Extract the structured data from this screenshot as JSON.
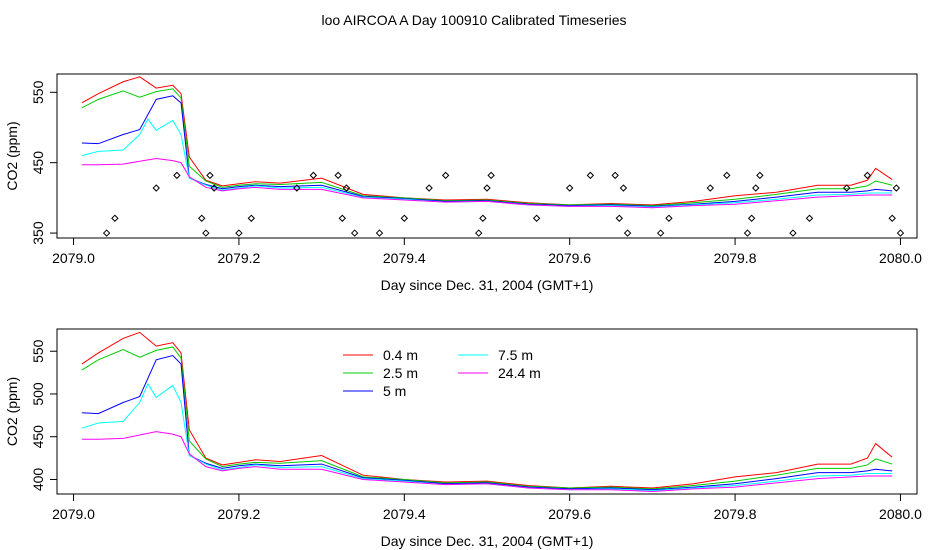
{
  "title": "loo AIRCOA A  Day 100910  Calibrated Timeseries",
  "colors": {
    "0.4 m": "#ff0000",
    "2.5 m": "#00cd00",
    "5 m": "#0000ff",
    "7.5 m": "#00ffff",
    "24.4 m": "#ff00ff",
    "points": "#000000"
  },
  "chart_data": [
    {
      "type": "line",
      "xlabel": "Day since Dec. 31, 2004 (GMT+1)",
      "ylabel": "CO2 (ppm)",
      "xlim": [
        2078.98,
        2080.02
      ],
      "ylim": [
        343,
        576
      ],
      "xticks": [
        2079.0,
        2079.2,
        2079.4,
        2079.6,
        2079.8,
        2080.0
      ],
      "xtick_labels": [
        "2079.0",
        "2079.2",
        "2079.4",
        "2079.6",
        "2079.8",
        "2080.0"
      ],
      "yticks": [
        350,
        450,
        550
      ],
      "ytick_labels": [
        "350",
        "450",
        "550"
      ],
      "legend": "none",
      "series": [
        {
          "name": "0.4 m",
          "x": [
            2079.01,
            2079.03,
            2079.06,
            2079.08,
            2079.1,
            2079.12,
            2079.13,
            2079.14,
            2079.16,
            2079.18,
            2079.2,
            2079.22,
            2079.25,
            2079.3,
            2079.35,
            2079.4,
            2079.45,
            2079.5,
            2079.55,
            2079.6,
            2079.65,
            2079.7,
            2079.75,
            2079.8,
            2079.85,
            2079.9,
            2079.94,
            2079.96,
            2079.97,
            2079.99
          ],
          "y": [
            535,
            548,
            565,
            572,
            556,
            560,
            548,
            458,
            425,
            417,
            420,
            423,
            421,
            428,
            405,
            400,
            397,
            398,
            393,
            390,
            392,
            390,
            395,
            403,
            408,
            418,
            418,
            425,
            442,
            426
          ]
        },
        {
          "name": "2.5 m",
          "x": [
            2079.01,
            2079.03,
            2079.06,
            2079.08,
            2079.1,
            2079.12,
            2079.13,
            2079.14,
            2079.16,
            2079.18,
            2079.2,
            2079.22,
            2079.25,
            2079.3,
            2079.35,
            2079.4,
            2079.45,
            2079.5,
            2079.55,
            2079.6,
            2079.65,
            2079.7,
            2079.75,
            2079.8,
            2079.85,
            2079.9,
            2079.94,
            2079.96,
            2079.97,
            2079.99
          ],
          "y": [
            528,
            540,
            552,
            543,
            551,
            555,
            542,
            445,
            424,
            415,
            418,
            420,
            419,
            422,
            403,
            400,
            396,
            397,
            392,
            390,
            391,
            389,
            393,
            398,
            405,
            413,
            413,
            417,
            424,
            418
          ]
        },
        {
          "name": "5 m",
          "x": [
            2079.01,
            2079.03,
            2079.06,
            2079.08,
            2079.1,
            2079.12,
            2079.13,
            2079.14,
            2079.16,
            2079.18,
            2079.2,
            2079.22,
            2079.25,
            2079.3,
            2079.35,
            2079.4,
            2079.45,
            2079.5,
            2079.55,
            2079.6,
            2079.65,
            2079.7,
            2079.75,
            2079.8,
            2079.85,
            2079.9,
            2079.94,
            2079.96,
            2079.97,
            2079.99
          ],
          "y": [
            478,
            477,
            490,
            497,
            540,
            545,
            535,
            428,
            419,
            413,
            416,
            418,
            416,
            418,
            402,
            399,
            395,
            396,
            391,
            389,
            390,
            388,
            391,
            395,
            401,
            408,
            408,
            410,
            412,
            410
          ]
        },
        {
          "name": "7.5 m",
          "x": [
            2079.01,
            2079.03,
            2079.06,
            2079.08,
            2079.09,
            2079.1,
            2079.12,
            2079.13,
            2079.14,
            2079.16,
            2079.18,
            2079.2,
            2079.22,
            2079.25,
            2079.3,
            2079.35,
            2079.4,
            2079.45,
            2079.5,
            2079.55,
            2079.6,
            2079.65,
            2079.7,
            2079.75,
            2079.8,
            2079.85,
            2079.9,
            2079.94,
            2079.96,
            2079.99
          ],
          "y": [
            460,
            466,
            468,
            490,
            512,
            496,
            510,
            490,
            428,
            418,
            411,
            414,
            417,
            414,
            415,
            401,
            398,
            394,
            395,
            390,
            388,
            389,
            387,
            390,
            393,
            398,
            404,
            405,
            407,
            407
          ]
        },
        {
          "name": "24.4 m",
          "x": [
            2079.01,
            2079.03,
            2079.06,
            2079.08,
            2079.1,
            2079.12,
            2079.13,
            2079.14,
            2079.16,
            2079.18,
            2079.2,
            2079.22,
            2079.25,
            2079.3,
            2079.35,
            2079.4,
            2079.45,
            2079.5,
            2079.55,
            2079.6,
            2079.65,
            2079.7,
            2079.75,
            2079.8,
            2079.85,
            2079.9,
            2079.94,
            2079.96,
            2079.99
          ],
          "y": [
            447,
            447,
            448,
            452,
            456,
            453,
            450,
            430,
            415,
            410,
            413,
            415,
            412,
            412,
            400,
            397,
            394,
            395,
            390,
            388,
            388,
            386,
            389,
            391,
            396,
            401,
            403,
            404,
            404
          ]
        }
      ],
      "points": {
        "x": [
          2079.04,
          2079.05,
          2079.1,
          2079.125,
          2079.155,
          2079.16,
          2079.165,
          2079.17,
          2079.2,
          2079.215,
          2079.27,
          2079.29,
          2079.32,
          2079.325,
          2079.33,
          2079.34,
          2079.37,
          2079.4,
          2079.43,
          2079.45,
          2079.49,
          2079.495,
          2079.5,
          2079.505,
          2079.56,
          2079.6,
          2079.625,
          2079.655,
          2079.66,
          2079.665,
          2079.67,
          2079.71,
          2079.72,
          2079.77,
          2079.79,
          2079.815,
          2079.82,
          2079.825,
          2079.83,
          2079.87,
          2079.89,
          2079.935,
          2079.96,
          2079.99,
          2079.995,
          2080.0
        ],
        "y": [
          350,
          371,
          414,
          432,
          371,
          350,
          432,
          414,
          350,
          371,
          414,
          432,
          432,
          371,
          414,
          350,
          350,
          371,
          414,
          432,
          350,
          371,
          414,
          432,
          371,
          414,
          432,
          432,
          371,
          414,
          350,
          350,
          371,
          414,
          432,
          350,
          371,
          414,
          432,
          350,
          371,
          414,
          432,
          371,
          414,
          350
        ]
      }
    },
    {
      "type": "line",
      "xlabel": "Day since Dec. 31, 2004 (GMT+1)",
      "ylabel": "CO2 (ppm)",
      "xlim": [
        2078.98,
        2080.02
      ],
      "ylim": [
        383,
        576
      ],
      "xticks": [
        2079.0,
        2079.2,
        2079.4,
        2079.6,
        2079.8,
        2080.0
      ],
      "xtick_labels": [
        "2079.0",
        "2079.2",
        "2079.4",
        "2079.6",
        "2079.8",
        "2080.0"
      ],
      "yticks": [
        400,
        450,
        500,
        550
      ],
      "ytick_labels": [
        "400",
        "450",
        "500",
        "550"
      ],
      "legend": "top-left",
      "series": [
        {
          "name": "0.4 m",
          "x": [
            2079.01,
            2079.03,
            2079.06,
            2079.08,
            2079.1,
            2079.12,
            2079.13,
            2079.14,
            2079.16,
            2079.18,
            2079.2,
            2079.22,
            2079.25,
            2079.3,
            2079.35,
            2079.4,
            2079.45,
            2079.5,
            2079.55,
            2079.6,
            2079.65,
            2079.7,
            2079.75,
            2079.8,
            2079.85,
            2079.9,
            2079.94,
            2079.96,
            2079.97,
            2079.99
          ],
          "y": [
            535,
            548,
            565,
            572,
            556,
            560,
            548,
            458,
            425,
            417,
            420,
            423,
            421,
            428,
            405,
            400,
            397,
            398,
            393,
            390,
            392,
            390,
            395,
            403,
            408,
            418,
            418,
            425,
            442,
            426
          ]
        },
        {
          "name": "2.5 m",
          "x": [
            2079.01,
            2079.03,
            2079.06,
            2079.08,
            2079.1,
            2079.12,
            2079.13,
            2079.14,
            2079.16,
            2079.18,
            2079.2,
            2079.22,
            2079.25,
            2079.3,
            2079.35,
            2079.4,
            2079.45,
            2079.5,
            2079.55,
            2079.6,
            2079.65,
            2079.7,
            2079.75,
            2079.8,
            2079.85,
            2079.9,
            2079.94,
            2079.96,
            2079.97,
            2079.99
          ],
          "y": [
            528,
            540,
            552,
            543,
            551,
            555,
            542,
            445,
            424,
            415,
            418,
            420,
            419,
            422,
            403,
            400,
            396,
            397,
            392,
            390,
            391,
            389,
            393,
            398,
            405,
            413,
            413,
            417,
            424,
            418
          ]
        },
        {
          "name": "5 m",
          "x": [
            2079.01,
            2079.03,
            2079.06,
            2079.08,
            2079.1,
            2079.12,
            2079.13,
            2079.14,
            2079.16,
            2079.18,
            2079.2,
            2079.22,
            2079.25,
            2079.3,
            2079.35,
            2079.4,
            2079.45,
            2079.5,
            2079.55,
            2079.6,
            2079.65,
            2079.7,
            2079.75,
            2079.8,
            2079.85,
            2079.9,
            2079.94,
            2079.96,
            2079.97,
            2079.99
          ],
          "y": [
            478,
            477,
            490,
            497,
            540,
            545,
            535,
            428,
            419,
            413,
            416,
            418,
            416,
            418,
            402,
            399,
            395,
            396,
            391,
            389,
            390,
            388,
            391,
            395,
            401,
            408,
            408,
            410,
            412,
            410
          ]
        },
        {
          "name": "7.5 m",
          "x": [
            2079.01,
            2079.03,
            2079.06,
            2079.08,
            2079.09,
            2079.1,
            2079.12,
            2079.13,
            2079.14,
            2079.16,
            2079.18,
            2079.2,
            2079.22,
            2079.25,
            2079.3,
            2079.35,
            2079.4,
            2079.45,
            2079.5,
            2079.55,
            2079.6,
            2079.65,
            2079.7,
            2079.75,
            2079.8,
            2079.85,
            2079.9,
            2079.94,
            2079.96,
            2079.99
          ],
          "y": [
            460,
            466,
            468,
            490,
            512,
            496,
            510,
            490,
            428,
            418,
            411,
            414,
            417,
            414,
            415,
            401,
            398,
            394,
            395,
            390,
            388,
            389,
            387,
            390,
            393,
            398,
            404,
            405,
            407,
            407
          ]
        },
        {
          "name": "24.4 m",
          "x": [
            2079.01,
            2079.03,
            2079.06,
            2079.08,
            2079.1,
            2079.12,
            2079.13,
            2079.14,
            2079.16,
            2079.18,
            2079.2,
            2079.22,
            2079.25,
            2079.3,
            2079.35,
            2079.4,
            2079.45,
            2079.5,
            2079.55,
            2079.6,
            2079.65,
            2079.7,
            2079.75,
            2079.8,
            2079.85,
            2079.9,
            2079.94,
            2079.96,
            2079.99
          ],
          "y": [
            447,
            447,
            448,
            452,
            456,
            453,
            450,
            430,
            415,
            410,
            413,
            415,
            412,
            412,
            400,
            397,
            394,
            395,
            390,
            388,
            388,
            386,
            389,
            391,
            396,
            401,
            403,
            404,
            404
          ]
        }
      ]
    }
  ]
}
